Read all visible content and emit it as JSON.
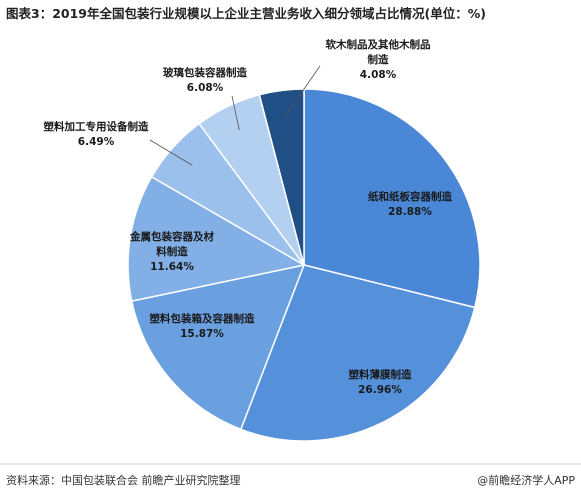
{
  "chart_data": {
    "type": "pie",
    "title": "图表3：2019年全国包装行业规模以上企业主营业务收入细分领域占比情况(单位：%)",
    "categories": [
      "纸和纸板容器制造",
      "塑料薄膜制造",
      "塑料包装箱及容器制造",
      "金属包装容器及材料制造",
      "塑料加工专用设备制造",
      "玻璃包装容器制造",
      "软木制品及其他木制品制造"
    ],
    "values": [
      28.88,
      26.96,
      15.87,
      11.64,
      6.49,
      6.08,
      4.08
    ],
    "value_labels": [
      "28.88%",
      "26.96%",
      "15.87%",
      "11.64%",
      "6.49%",
      "6.08%",
      "4.08%"
    ],
    "colors": [
      "#4a87d6",
      "#5590db",
      "#6a9fe0",
      "#82afe5",
      "#9bc0eb",
      "#b3d0f1",
      "#1f4f85"
    ],
    "source": "资料来源：中国包装联合会 前瞻产业研究院整理",
    "watermark": "@前瞻经济学人APP"
  }
}
